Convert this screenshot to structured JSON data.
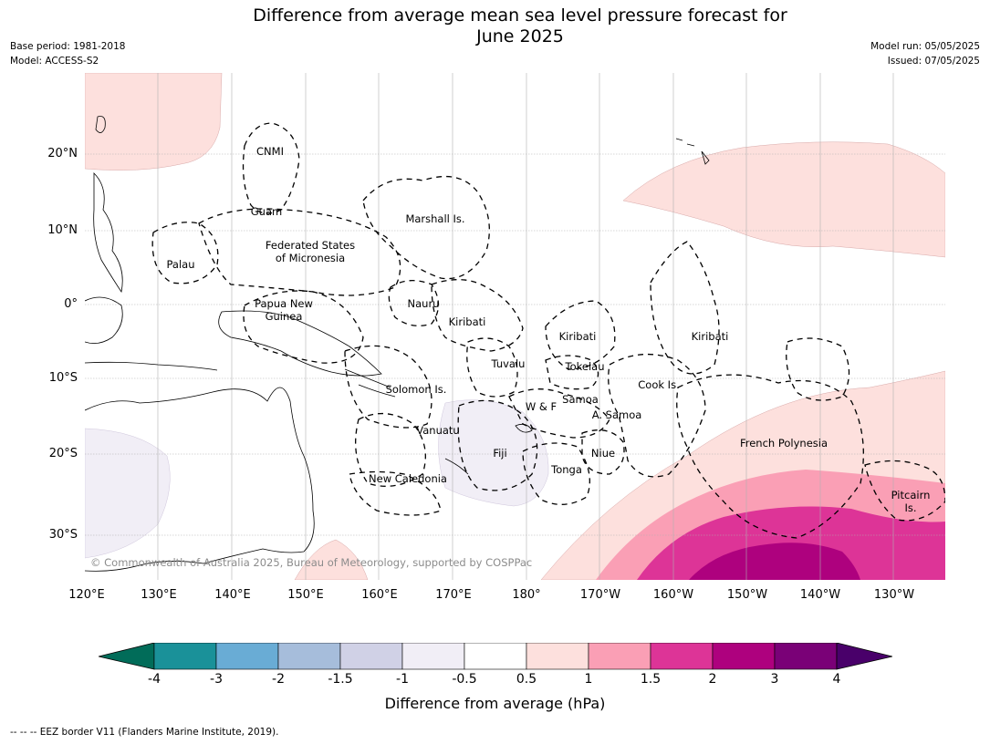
{
  "title": "Difference from average mean sea level pressure forecast for\nJune 2025",
  "meta": {
    "base_period": "Base period: 1981-2018",
    "model": "Model: ACCESS-S2",
    "model_run": "Model run: 05/05/2025",
    "issued": "Issued: 07/05/2025"
  },
  "lat_labels": [
    "20°N",
    "10°N",
    "0°",
    "10°S",
    "20°S",
    "30°S"
  ],
  "lon_labels": [
    "120°E",
    "130°E",
    "140°E",
    "150°E",
    "160°E",
    "170°E",
    "180°",
    "170°W",
    "160°W",
    "150°W",
    "140°W",
    "130°W"
  ],
  "places": [
    {
      "name": "CNMI"
    },
    {
      "name": "Guam"
    },
    {
      "name": "Marshall Is."
    },
    {
      "name": "Federated States\nof Micronesia"
    },
    {
      "name": "Palau"
    },
    {
      "name": "Papua New\nGuinea"
    },
    {
      "name": "Nauru"
    },
    {
      "name": "Kiribati"
    },
    {
      "name": "Kiribati"
    },
    {
      "name": "Kiribati"
    },
    {
      "name": "Tuvalu"
    },
    {
      "name": "Tokelau"
    },
    {
      "name": "Cook Is."
    },
    {
      "name": "Solomon Is."
    },
    {
      "name": "W & F"
    },
    {
      "name": "Samoa"
    },
    {
      "name": "A. Samoa"
    },
    {
      "name": "Vanuatu"
    },
    {
      "name": "Fiji"
    },
    {
      "name": "Niue"
    },
    {
      "name": "Tonga"
    },
    {
      "name": "New Caledonia"
    },
    {
      "name": "French Polynesia"
    },
    {
      "name": "Pitcairn\nIs."
    }
  ],
  "copyright": "© Commonwealth of Australia 2025, Bureau of Meteorology, supported by COSPPac",
  "colorbar": {
    "ticks": [
      "-4",
      "-3",
      "-2",
      "-1.5",
      "-1",
      "-0.5",
      "0.5",
      "1",
      "1.5",
      "2",
      "3",
      "4"
    ],
    "colors": [
      "#1a9199",
      "#69acd5",
      "#a6bddb",
      "#d0d1e6",
      "#f1eef6",
      "#ffffff",
      "#fde0dd",
      "#fa9fb5",
      "#dd3497",
      "#ae017e",
      "#7a0177"
    ],
    "under_color": "#016c59",
    "over_color": "#49006a",
    "label": "Difference from average (hPa)"
  },
  "footnote": "--  --  -- EEZ border V11 (Flanders Marine Institute, 2019)."
}
